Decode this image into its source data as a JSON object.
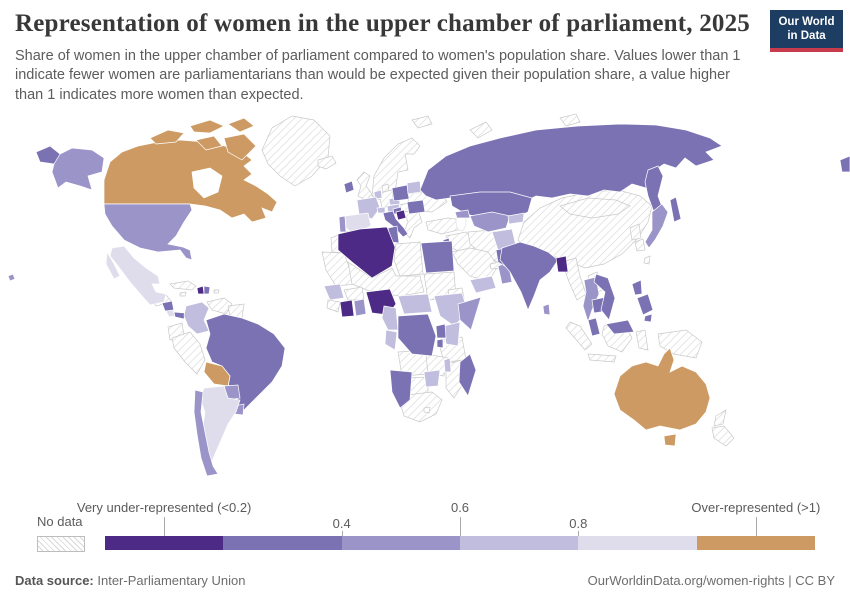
{
  "header": {
    "title": "Representation of women in the upper chamber of parliament, 2025",
    "subtitle": "Share of women in the upper chamber of parliament compared to women's population share. Values lower than 1 indicate fewer women are parliamentarians than would be expected given their population share, a value higher than 1 indicates more women than expected.",
    "logo": {
      "line1": "Our World",
      "line2": "in Data",
      "bg_color": "#1d3d63",
      "accent_color": "#c73b4d"
    }
  },
  "footer": {
    "data_source_label": "Data source:",
    "data_source_value": "Inter-Parliamentary Union",
    "credit": "OurWorldinData.org/women-rights | CC BY"
  },
  "chart_data": {
    "type": "choropleth",
    "title": "Representation of women in the upper chamber of parliament, 2025",
    "year": "2025",
    "metric": "ratio of women's share of upper-chamber seats to women's population share",
    "legend": {
      "no_data_label": "No data",
      "bins": [
        {
          "id": "lt_0_2",
          "label": "Very under-represented (<0.2)",
          "color": "#4c2a85"
        },
        {
          "id": "0_2_to_0_4",
          "label": "0.2–0.4",
          "color": "#7b72b4"
        },
        {
          "id": "0_4_to_0_6",
          "label": "0.4–0.6",
          "color": "#9a94c8"
        },
        {
          "id": "0_6_to_0_8",
          "label": "0.6–0.8",
          "color": "#c0bdde"
        },
        {
          "id": "0_8_to_1",
          "label": "0.8–1",
          "color": "#dfddec"
        },
        {
          "id": "gt_1",
          "label": "Over-represented (>1)",
          "color": "#cd9a63"
        }
      ],
      "ticks": [
        {
          "label": "Very under-represented (<0.2)",
          "pos_pct": 8.33,
          "row": "top"
        },
        {
          "label": "0.4",
          "pos_pct": 33.33,
          "row": "bottom"
        },
        {
          "label": "0.6",
          "pos_pct": 50,
          "row": "top"
        },
        {
          "label": "0.8",
          "pos_pct": 66.67,
          "row": "bottom"
        },
        {
          "label": "Over-represented (>1)",
          "pos_pct": 91.67,
          "row": "top"
        }
      ],
      "no_data_style": {
        "hatch_color": "#d8d8d8",
        "border_color": "#c9c9c9"
      }
    },
    "countries": [
      {
        "id": "canada",
        "name": "Canada",
        "bin": "gt_1"
      },
      {
        "id": "australia",
        "name": "Australia",
        "bin": "gt_1"
      },
      {
        "id": "bolivia",
        "name": "Bolivia",
        "bin": "gt_1"
      },
      {
        "id": "algeria",
        "name": "Algeria",
        "bin": "lt_0_2"
      },
      {
        "id": "nigeria",
        "name": "Nigeria",
        "bin": "lt_0_2"
      },
      {
        "id": "bosnia",
        "name": "Bosnia and Herzegovina",
        "bin": "lt_0_2"
      },
      {
        "id": "haiti",
        "name": "Haiti",
        "bin": "lt_0_2"
      },
      {
        "id": "cote_divoire",
        "name": "Côte d'Ivoire",
        "bin": "lt_0_2"
      },
      {
        "id": "bangladesh",
        "name": "Bangladesh",
        "bin": "lt_0_2"
      },
      {
        "id": "russia",
        "name": "Russia",
        "bin": "0_2_to_0_4"
      },
      {
        "id": "kazakhstan",
        "name": "Kazakhstan",
        "bin": "0_2_to_0_4"
      },
      {
        "id": "brazil",
        "name": "Brazil",
        "bin": "0_2_to_0_4"
      },
      {
        "id": "india",
        "name": "India",
        "bin": "0_2_to_0_4"
      },
      {
        "id": "egypt",
        "name": "Egypt",
        "bin": "0_2_to_0_4"
      },
      {
        "id": "drc",
        "name": "Democratic Republic of Congo",
        "bin": "0_2_to_0_4"
      },
      {
        "id": "poland",
        "name": "Poland",
        "bin": "0_2_to_0_4"
      },
      {
        "id": "italy",
        "name": "Italy",
        "bin": "0_2_to_0_4"
      },
      {
        "id": "croatia",
        "name": "Croatia",
        "bin": "0_2_to_0_4"
      },
      {
        "id": "romania",
        "name": "Romania",
        "bin": "0_2_to_0_4"
      },
      {
        "id": "ireland",
        "name": "Ireland",
        "bin": "0_2_to_0_4"
      },
      {
        "id": "tunisia",
        "name": "Tunisia",
        "bin": "0_2_to_0_4"
      },
      {
        "id": "jordan",
        "name": "Jordan / Israel",
        "bin": "0_2_to_0_4"
      },
      {
        "id": "pakistan",
        "name": "Pakistan",
        "bin": "0_2_to_0_4"
      },
      {
        "id": "vietnam",
        "name": "Vietnam",
        "bin": "0_2_to_0_4"
      },
      {
        "id": "cambodia",
        "name": "Cambodia",
        "bin": "0_2_to_0_4"
      },
      {
        "id": "philippines",
        "name": "Philippines",
        "bin": "0_2_to_0_4"
      },
      {
        "id": "malaysia",
        "name": "Malaysia",
        "bin": "0_2_to_0_4"
      },
      {
        "id": "namibia",
        "name": "Namibia",
        "bin": "0_2_to_0_4"
      },
      {
        "id": "madagascar",
        "name": "Madagascar",
        "bin": "0_2_to_0_4"
      },
      {
        "id": "nicaragua",
        "name": "Nicaragua",
        "bin": "0_2_to_0_4"
      },
      {
        "id": "panama",
        "name": "Panama",
        "bin": "0_2_to_0_4"
      },
      {
        "id": "uganda",
        "name": "Uganda",
        "bin": "0_2_to_0_4"
      },
      {
        "id": "rwanda_burundi",
        "name": "Rwanda / Burundi",
        "bin": "0_2_to_0_4"
      },
      {
        "id": "dominican_republic",
        "name": "Dominican Republic",
        "bin": "0_2_to_0_4"
      },
      {
        "id": "united_states",
        "name": "United States",
        "bin": "0_4_to_0_6"
      },
      {
        "id": "japan",
        "name": "Japan",
        "bin": "0_4_to_0_6"
      },
      {
        "id": "somalia",
        "name": "Somalia",
        "bin": "0_4_to_0_6"
      },
      {
        "id": "chile",
        "name": "Chile",
        "bin": "0_4_to_0_6"
      },
      {
        "id": "uruguay",
        "name": "Uruguay",
        "bin": "0_4_to_0_6"
      },
      {
        "id": "paraguay",
        "name": "Paraguay",
        "bin": "0_4_to_0_6"
      },
      {
        "id": "thailand",
        "name": "Thailand",
        "bin": "0_4_to_0_6"
      },
      {
        "id": "uzbekistan",
        "name": "Uzbekistan / Turkmenistan",
        "bin": "0_4_to_0_6"
      },
      {
        "id": "oman",
        "name": "Oman",
        "bin": "0_4_to_0_6"
      },
      {
        "id": "ghana",
        "name": "Ghana / Togo",
        "bin": "0_4_to_0_6"
      },
      {
        "id": "sri_lanka",
        "name": "Sri Lanka",
        "bin": "0_4_to_0_6"
      },
      {
        "id": "portugal",
        "name": "Portugal",
        "bin": "0_4_to_0_6"
      },
      {
        "id": "caucasus",
        "name": "Caucasus states",
        "bin": "0_4_to_0_6"
      },
      {
        "id": "france",
        "name": "France",
        "bin": "0_6_to_0_8"
      },
      {
        "id": "colombia",
        "name": "Colombia",
        "bin": "0_6_to_0_8"
      },
      {
        "id": "ethiopia",
        "name": "Ethiopia",
        "bin": "0_6_to_0_8"
      },
      {
        "id": "kenya",
        "name": "Kenya",
        "bin": "0_6_to_0_8"
      },
      {
        "id": "zimbabwe",
        "name": "Zimbabwe",
        "bin": "0_6_to_0_8"
      },
      {
        "id": "cameroon",
        "name": "Cameroon",
        "bin": "0_6_to_0_8"
      },
      {
        "id": "car",
        "name": "Central African Republic / South Sudan",
        "bin": "0_6_to_0_8"
      },
      {
        "id": "afghanistan",
        "name": "Afghanistan",
        "bin": "0_6_to_0_8"
      },
      {
        "id": "belarus",
        "name": "Belarus",
        "bin": "0_6_to_0_8"
      },
      {
        "id": "yemen",
        "name": "Yemen",
        "bin": "0_6_to_0_8"
      },
      {
        "id": "senegal",
        "name": "Senegal / Guinea",
        "bin": "0_6_to_0_8"
      },
      {
        "id": "switzerland",
        "name": "Switzerland",
        "bin": "0_6_to_0_8"
      },
      {
        "id": "austria",
        "name": "Austria",
        "bin": "0_6_to_0_8"
      },
      {
        "id": "czechia",
        "name": "Czechia",
        "bin": "0_6_to_0_8"
      },
      {
        "id": "benelux",
        "name": "Belgium / Netherlands",
        "bin": "0_6_to_0_8"
      },
      {
        "id": "gabon_congo",
        "name": "Gabon / Congo",
        "bin": "0_6_to_0_8"
      },
      {
        "id": "kyrgyzstan",
        "name": "Kyrgyzstan / Tajikistan",
        "bin": "0_6_to_0_8"
      },
      {
        "id": "malawi",
        "name": "Malawi",
        "bin": "0_6_to_0_8"
      },
      {
        "id": "mexico",
        "name": "Mexico",
        "bin": "0_8_to_1"
      },
      {
        "id": "argentina",
        "name": "Argentina",
        "bin": "0_8_to_1"
      },
      {
        "id": "spain",
        "name": "Spain",
        "bin": "0_8_to_1"
      },
      {
        "id": "costa_rica",
        "name": "Costa Rica",
        "bin": "0_8_to_1"
      },
      {
        "id": "greenland",
        "name": "Greenland",
        "bin": "no_data"
      },
      {
        "id": "iceland",
        "name": "Iceland",
        "bin": "no_data"
      },
      {
        "id": "united_kingdom",
        "name": "United Kingdom",
        "bin": "no_data"
      },
      {
        "id": "scandinavia",
        "name": "Norway / Sweden / Finland",
        "bin": "no_data"
      },
      {
        "id": "denmark",
        "name": "Denmark",
        "bin": "no_data"
      },
      {
        "id": "germany",
        "name": "Germany",
        "bin": "no_data"
      },
      {
        "id": "ukraine",
        "name": "Ukraine",
        "bin": "no_data"
      },
      {
        "id": "hungary_slovakia",
        "name": "Hungary / Slovakia",
        "bin": "no_data"
      },
      {
        "id": "balkans",
        "name": "Serbia / Bulgaria / Greece",
        "bin": "no_data"
      },
      {
        "id": "turkey",
        "name": "Turkey",
        "bin": "no_data"
      },
      {
        "id": "syria_iraq",
        "name": "Syria / Iraq",
        "bin": "no_data"
      },
      {
        "id": "iran",
        "name": "Iran",
        "bin": "no_data"
      },
      {
        "id": "saudi_arabia",
        "name": "Saudi Arabia",
        "bin": "no_data"
      },
      {
        "id": "gulf_states",
        "name": "UAE / Qatar",
        "bin": "no_data"
      },
      {
        "id": "libya",
        "name": "Libya",
        "bin": "no_data"
      },
      {
        "id": "morocco",
        "name": "Morocco",
        "bin": "no_data"
      },
      {
        "id": "mauritania",
        "name": "Western Sahara / Mauritania",
        "bin": "no_data"
      },
      {
        "id": "sahel",
        "name": "Mali / Niger / Chad (region)",
        "bin": "no_data"
      },
      {
        "id": "sudan",
        "name": "Sudan",
        "bin": "no_data"
      },
      {
        "id": "eritrea",
        "name": "Eritrea / Djibouti",
        "bin": "no_data"
      },
      {
        "id": "sierra_leone",
        "name": "Sierra Leone / Liberia",
        "bin": "no_data"
      },
      {
        "id": "burkina_faso",
        "name": "Burkina Faso",
        "bin": "no_data"
      },
      {
        "id": "tanzania",
        "name": "Tanzania",
        "bin": "no_data"
      },
      {
        "id": "angola",
        "name": "Angola",
        "bin": "no_data"
      },
      {
        "id": "zambia",
        "name": "Zambia",
        "bin": "no_data"
      },
      {
        "id": "mozambique",
        "name": "Mozambique",
        "bin": "no_data"
      },
      {
        "id": "botswana",
        "name": "Botswana",
        "bin": "no_data"
      },
      {
        "id": "south_africa",
        "name": "South Africa",
        "bin": "no_data"
      },
      {
        "id": "lesotho",
        "name": "Lesotho",
        "bin": "no_data"
      },
      {
        "id": "peru",
        "name": "Peru",
        "bin": "no_data"
      },
      {
        "id": "venezuela",
        "name": "Venezuela",
        "bin": "no_data"
      },
      {
        "id": "guyana",
        "name": "Guyana / Suriname",
        "bin": "no_data"
      },
      {
        "id": "ecuador",
        "name": "Ecuador",
        "bin": "no_data"
      },
      {
        "id": "cuba",
        "name": "Cuba",
        "bin": "no_data"
      },
      {
        "id": "jamaica",
        "name": "Jamaica",
        "bin": "no_data"
      },
      {
        "id": "puerto_rico",
        "name": "Puerto Rico",
        "bin": "no_data"
      },
      {
        "id": "guatemala",
        "name": "Guatemala / Honduras",
        "bin": "no_data"
      },
      {
        "id": "china",
        "name": "China",
        "bin": "no_data"
      },
      {
        "id": "mongolia",
        "name": "Mongolia",
        "bin": "no_data"
      },
      {
        "id": "north_korea",
        "name": "North Korea",
        "bin": "no_data"
      },
      {
        "id": "south_korea",
        "name": "South Korea",
        "bin": "no_data"
      },
      {
        "id": "taiwan",
        "name": "Taiwan",
        "bin": "no_data"
      },
      {
        "id": "myanmar",
        "name": "Myanmar",
        "bin": "no_data"
      },
      {
        "id": "laos",
        "name": "Laos",
        "bin": "no_data"
      },
      {
        "id": "nepal",
        "name": "Nepal",
        "bin": "no_data"
      },
      {
        "id": "indonesia",
        "name": "Indonesia",
        "bin": "no_data"
      },
      {
        "id": "papua_new_guinea",
        "name": "Papua New Guinea",
        "bin": "no_data"
      },
      {
        "id": "new_zealand",
        "name": "New Zealand",
        "bin": "no_data"
      },
      {
        "id": "arctic_islands",
        "name": "Arctic islands",
        "bin": "no_data"
      }
    ]
  }
}
